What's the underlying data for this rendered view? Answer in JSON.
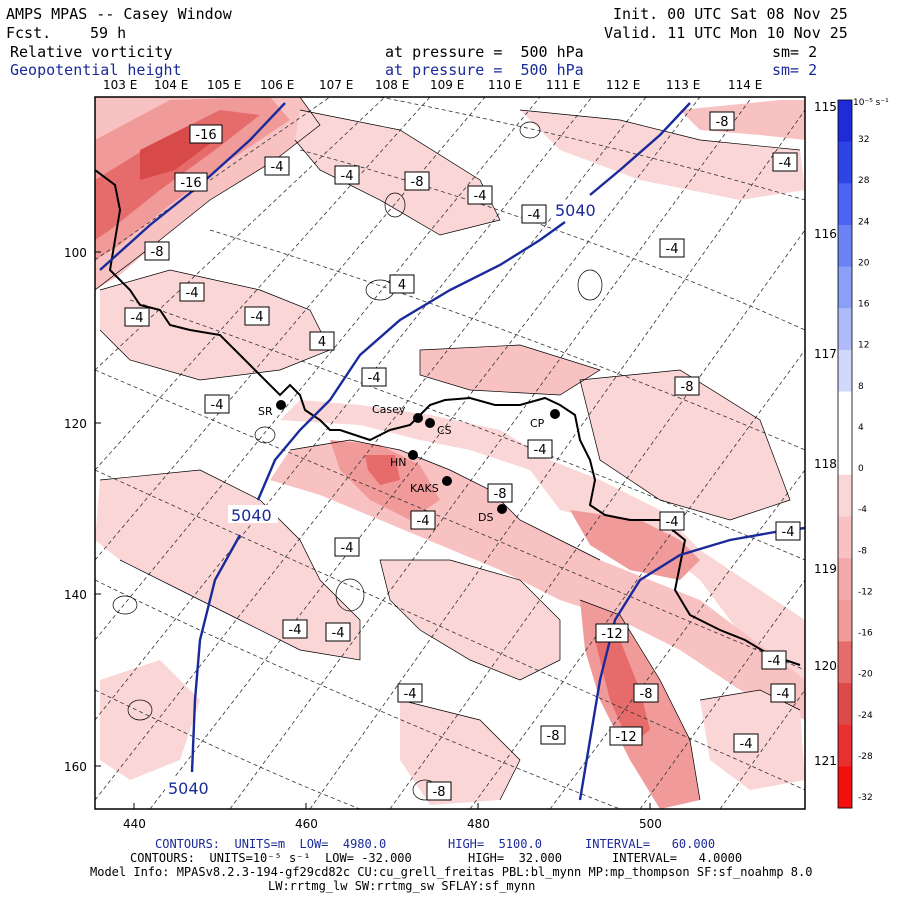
{
  "header": {
    "title": "AMPS MPAS -- Casey Window",
    "fcst_label": "Fcst.",
    "fcst_value": "59 h",
    "init": "Init. 00 UTC Sat 08 Nov 25",
    "valid": "Valid. 11 UTC Mon 10 Nov 25",
    "field1_name": "Relative vorticity",
    "field1_level": "at pressure =  500 hPa",
    "field1_sm": "sm= 2",
    "field2_name": "Geopotential height",
    "field2_level": "at pressure =  500 hPa",
    "field2_sm": "sm= 2"
  },
  "colors": {
    "height_contour": "#1a2a9a",
    "vort_contour": "#000000",
    "coast": "#000000"
  },
  "lon_labels": [
    "103 E",
    "104 E",
    "105 E",
    "106 E",
    "107 E",
    "108 E",
    "109 E",
    "110 E",
    "111 E",
    "112 E",
    "113 E",
    "114 E"
  ],
  "lat_labels_right": [
    "115 E",
    "116 E",
    "117 E",
    "118 E",
    "119 E",
    "120 E",
    "121 E"
  ],
  "x_axis": {
    "ticks": [
      "440",
      "460",
      "480",
      "500"
    ]
  },
  "y_axis": {
    "ticks": [
      "100",
      "120",
      "140",
      "160"
    ]
  },
  "colorbar": {
    "unit_label": "10⁻⁵ s⁻¹",
    "ticks": [
      "32",
      "28",
      "24",
      "20",
      "16",
      "12",
      "8",
      "4",
      "0",
      "-4",
      "-8",
      "-12",
      "-16",
      "-20",
      "-24",
      "-28",
      "-32"
    ]
  },
  "vorticity_labels": [
    "-16",
    "-16",
    "-4",
    "-4",
    "-8",
    "-4",
    "-4",
    "-8",
    "-8",
    "-4",
    "4",
    "-4",
    "-4",
    "-4",
    "4",
    "-4",
    "-4",
    "-4",
    "-8",
    "-8",
    "-4",
    "-4",
    "-4",
    "-4",
    "-12",
    "-8",
    "-12",
    "-4",
    "-4",
    "-4",
    "-4",
    "-8",
    "-4",
    "-8",
    "-4",
    "-4"
  ],
  "height_labels": [
    "5040",
    "5040",
    "5040"
  ],
  "stations": [
    {
      "name": "SR"
    },
    {
      "name": "Casey"
    },
    {
      "name": "CS"
    },
    {
      "name": "CP"
    },
    {
      "name": "HN"
    },
    {
      "name": "KAKS"
    },
    {
      "name": "DS"
    }
  ],
  "footer": {
    "line1_a": "CONTOURS:  UNITS=m  LOW=  4980.0",
    "line1_b": "HIGH=  5100.0",
    "line1_c": "INTERVAL=   60.000",
    "line2_a": "CONTOURS:  UNITS=10⁻⁵ s⁻¹  LOW= -32.000",
    "line2_b": "HIGH=  32.000",
    "line2_c": "INTERVAL=   4.0000",
    "line3": "Model Info: MPASv8.2.3-194-gf29cd82c CU:cu_grell_freitas PBL:bl_mynn MP:mp_thompson SF:sf_noahmp 8.0",
    "line4": "LW:rrtmg_lw SW:rrtmg_sw SFLAY:sf_mynn"
  }
}
